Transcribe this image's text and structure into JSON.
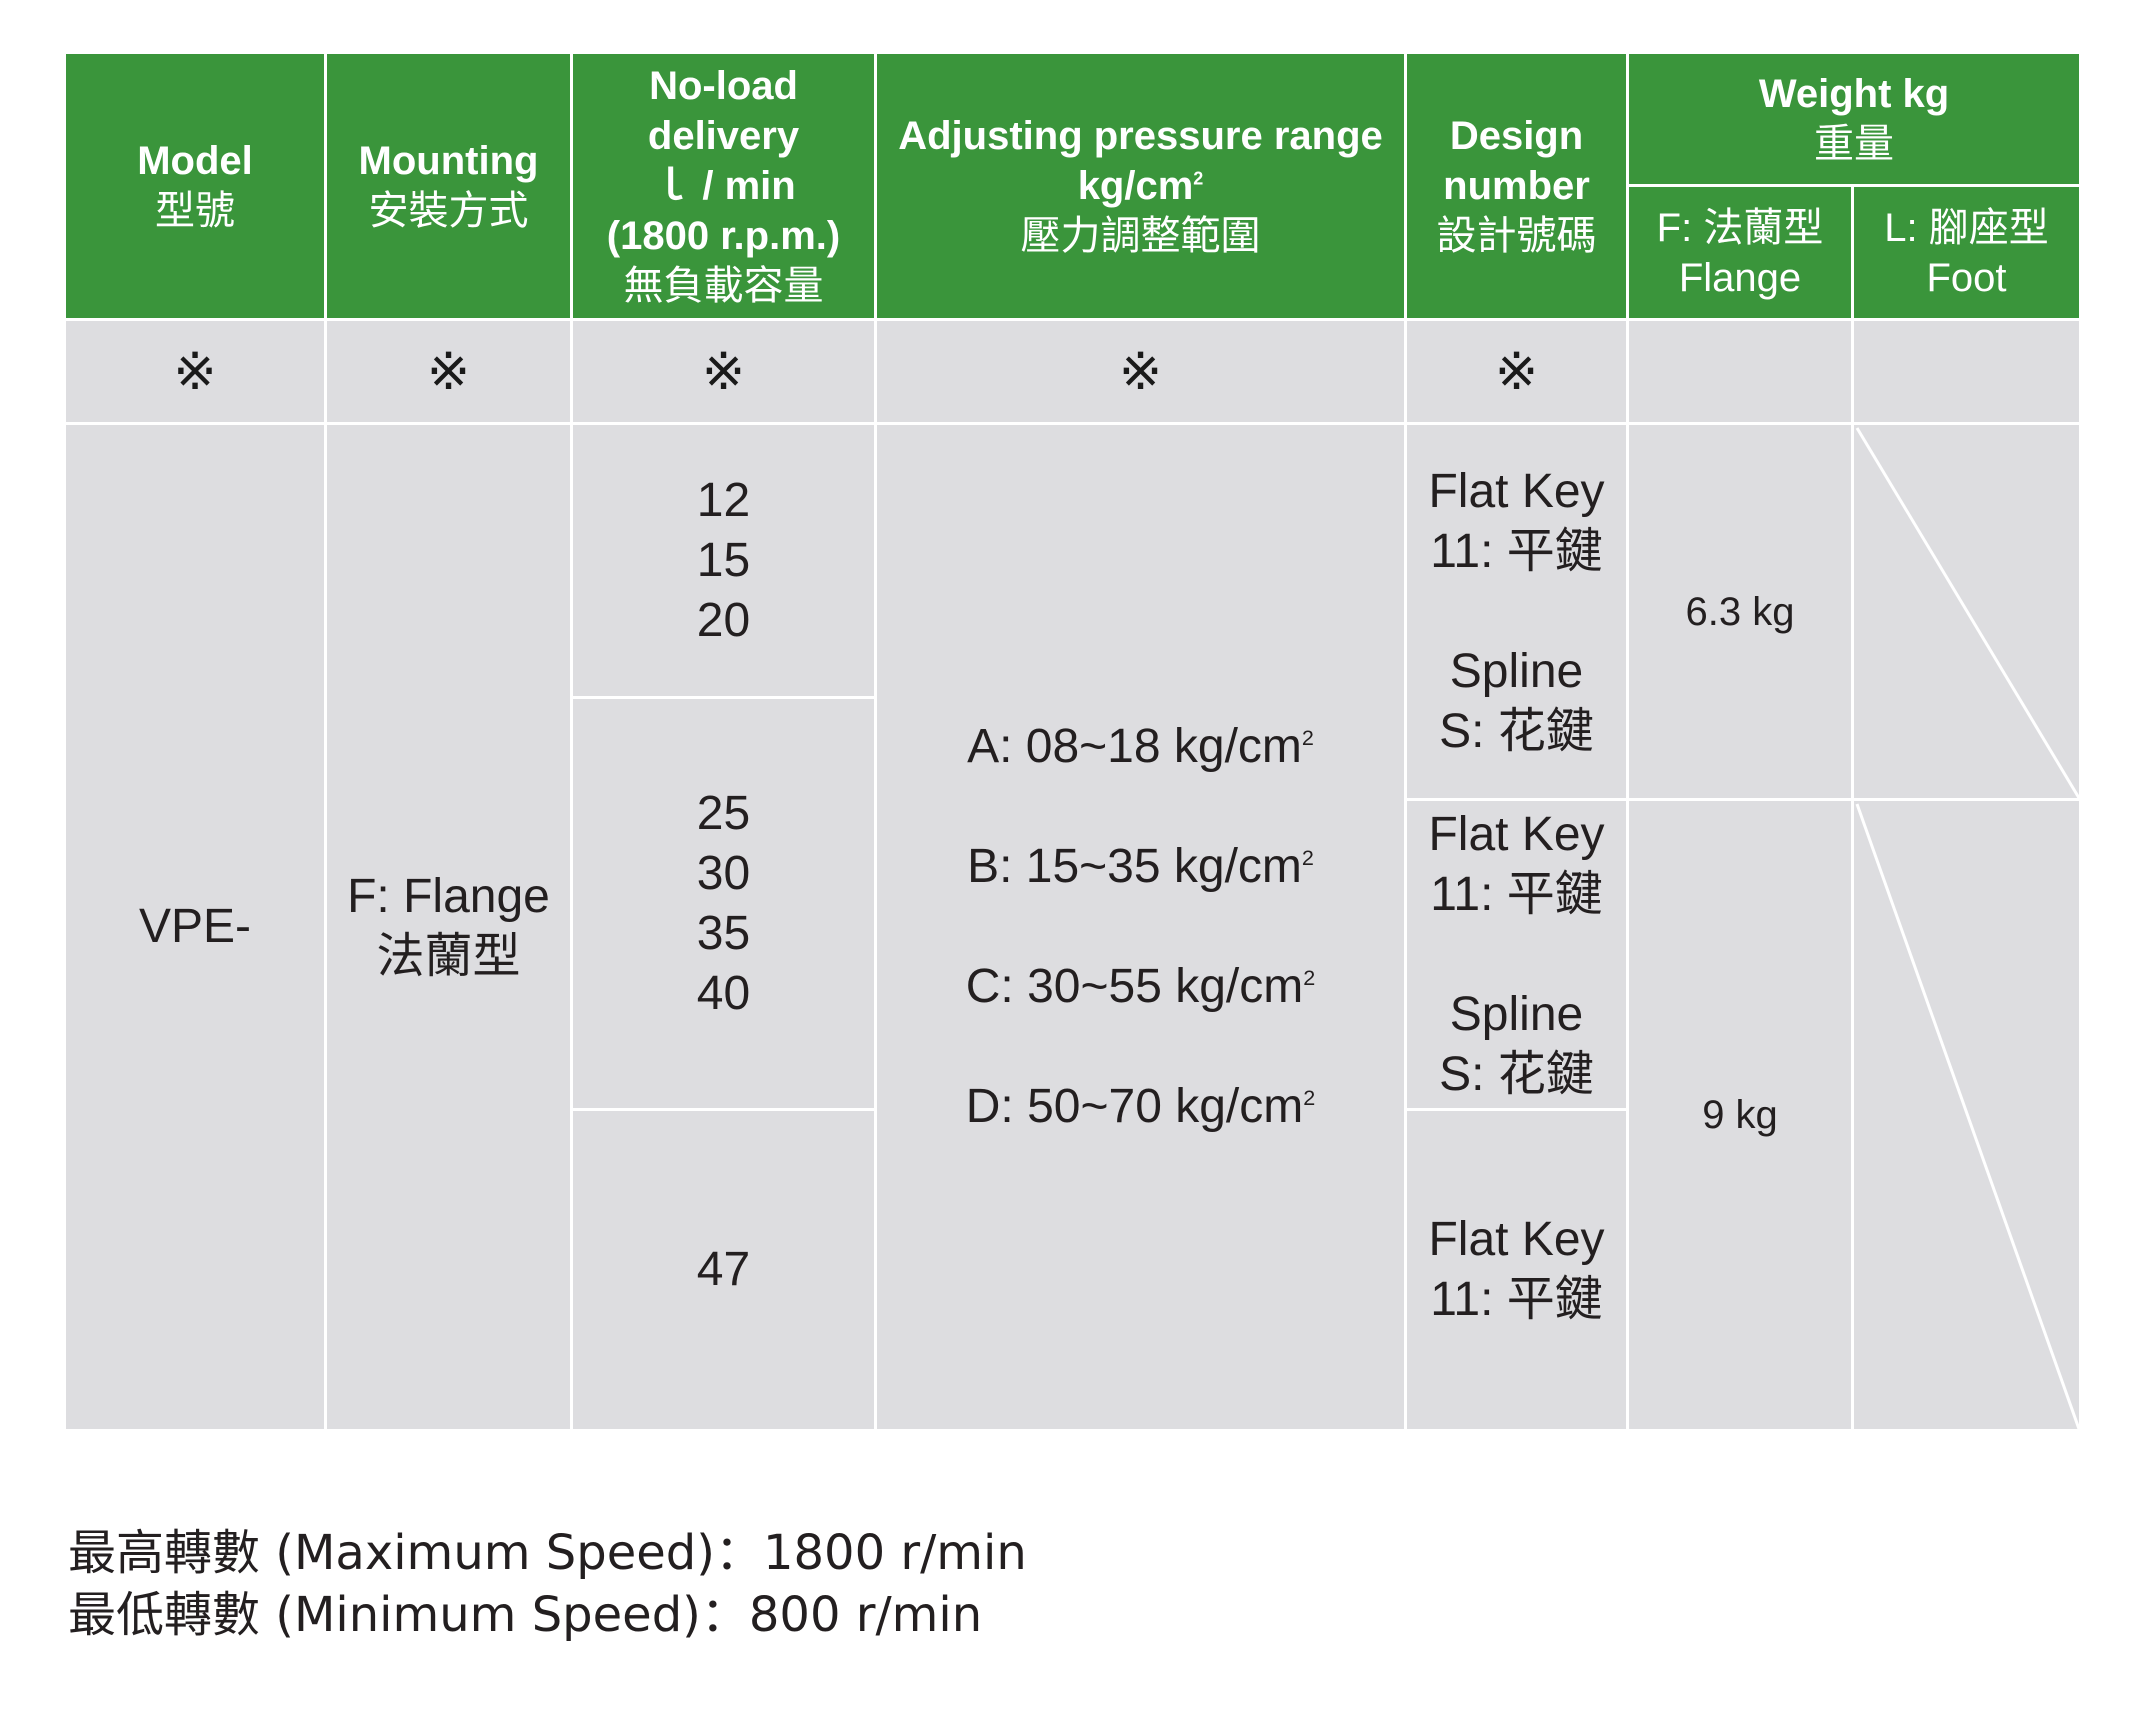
{
  "header": {
    "model": {
      "en": "Model",
      "zh": "型號"
    },
    "mounting": {
      "en": "Mounting",
      "zh": "安裝方式"
    },
    "delivery": {
      "l1": "No-load",
      "l2": "delivery",
      "l3": "ｌ / min",
      "l4": "(1800 r.p.m.)",
      "zh": "無負載容量"
    },
    "pressure": {
      "l1": "Adjusting pressure range",
      "l2": "kg/cm",
      "sup": "2",
      "zh": "壓力調整範圍"
    },
    "design": {
      "l1": "Design",
      "l2": "number",
      "zh": "設計號碼"
    },
    "weight": {
      "en": "Weight kg",
      "zh": "重量"
    },
    "flange": {
      "zh": "F: 法蘭型",
      "en": "Flange"
    },
    "foot": {
      "zh": "L: 腳座型",
      "en": "Foot"
    }
  },
  "mark": "※",
  "body": {
    "model": "VPE-",
    "mounting": {
      "en": "F: Flange",
      "zh": "法蘭型"
    },
    "delivery_groups": [
      [
        "12",
        "15",
        "20"
      ],
      [
        "25",
        "30",
        "35",
        "40"
      ],
      [
        "47"
      ]
    ],
    "pressure_ranges": [
      {
        "text": "A: 08~18 kg/cm",
        "sup": "2"
      },
      {
        "text": "B: 15~35 kg/cm",
        "sup": "2"
      },
      {
        "text": "C: 30~55 kg/cm",
        "sup": "2"
      },
      {
        "text": "D: 50~70 kg/cm",
        "sup": "2"
      }
    ],
    "design": {
      "flat_key_1": "Flat Key",
      "flat_key_2": "11: 平鍵",
      "spline_1": "Spline",
      "spline_2": "S: 花鍵"
    },
    "weights": [
      "6.3 kg",
      "9 kg"
    ]
  },
  "footer": {
    "max_speed": "最高轉數 (Maximum Speed)：1800 r/min",
    "min_speed": "最低轉數 (Minimum Speed)：800 r/min"
  }
}
